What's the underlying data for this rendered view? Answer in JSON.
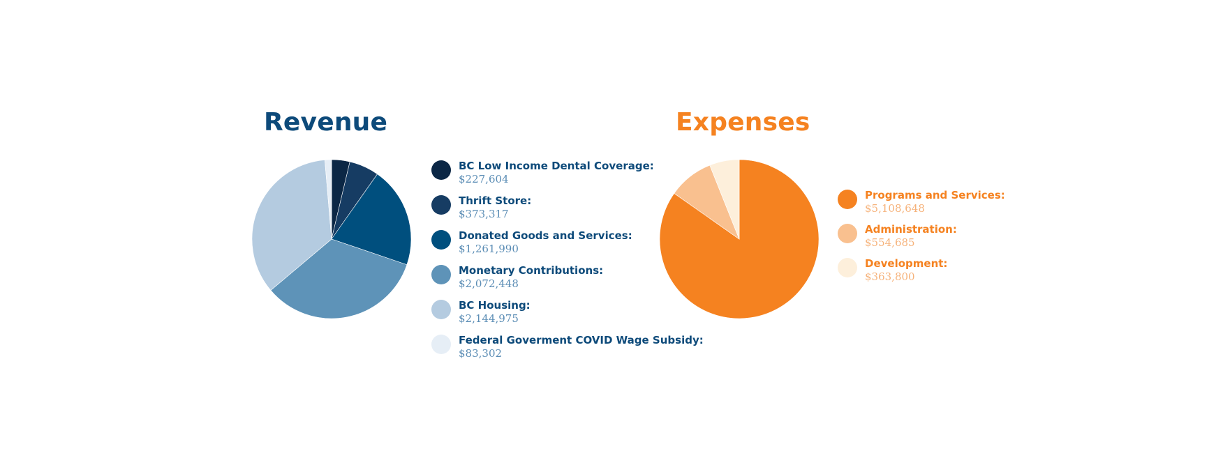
{
  "chart_data": [
    {
      "type": "pie",
      "title": "Revenue",
      "title_color": "#0d4a7a",
      "label_color": "#0d4a7a",
      "value_color": "#5b8db5",
      "slices": [
        {
          "label": "BC Low Income Dental Coverage:",
          "value": 227604,
          "value_label": "$227,604",
          "color": "#0b2745"
        },
        {
          "label": "Thrift Store:",
          "value": 373317,
          "value_label": "$373,317",
          "color": "#163c63"
        },
        {
          "label": "Donated Goods and Services:",
          "value": 1261990,
          "value_label": "$1,261,990",
          "color": "#004f7e"
        },
        {
          "label": "Monetary Contributions:",
          "value": 2072448,
          "value_label": "$2,072,448",
          "color": "#5e93b8"
        },
        {
          "label": "BC Housing:",
          "value": 2144975,
          "value_label": "$2,144,975",
          "color": "#b4cbe0"
        },
        {
          "label": "Federal Goverment COVID Wage Subsidy:",
          "value": 83302,
          "value_label": "$83,302",
          "color": "#e6eef6"
        }
      ],
      "legend_position": "right"
    },
    {
      "type": "pie",
      "title": "Expenses",
      "title_color": "#f58220",
      "label_color": "#f58220",
      "value_color": "#f6b27a",
      "slices": [
        {
          "label": "Programs and Services:",
          "value": 5108648,
          "value_label": "$5,108,648",
          "color": "#f58220"
        },
        {
          "label": "Administration:",
          "value": 554685,
          "value_label": "$554,685",
          "color": "#f9c08f"
        },
        {
          "label": "Development:",
          "value": 363800,
          "value_label": "$363,800",
          "color": "#fdefdb"
        }
      ],
      "legend_position": "right"
    }
  ]
}
